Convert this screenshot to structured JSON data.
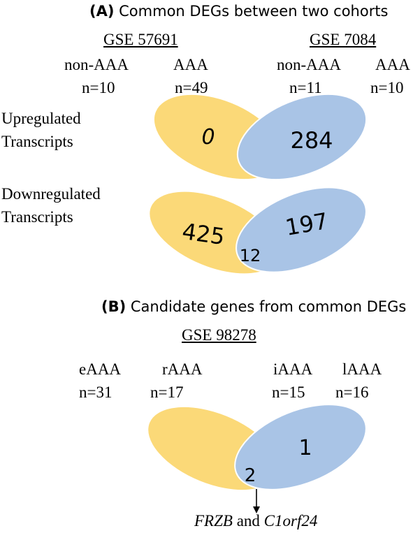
{
  "panel_a": {
    "letter": "(A)",
    "title": "Common DEGs between two cohorts",
    "cohort1": {
      "name": "GSE 57691",
      "groups": [
        {
          "label": "non-AAA",
          "n": "n=10"
        },
        {
          "label": "AAA",
          "n": "n=49"
        }
      ]
    },
    "cohort2": {
      "name": "GSE 7084",
      "groups": [
        {
          "label": "non-AAA",
          "n": "n=11"
        },
        {
          "label": "AAA",
          "n": "n=10"
        }
      ]
    },
    "upregulated": {
      "label_line1": "Upregulated",
      "label_line2": "Transcripts",
      "left": "0",
      "right": "284"
    },
    "downregulated": {
      "label_line1": "Downregulated",
      "label_line2": "Transcripts",
      "left": "425",
      "overlap": "12",
      "right": "197"
    }
  },
  "panel_b": {
    "letter": "(B)",
    "title": "Candidate genes from common DEGs",
    "cohort": {
      "name": "GSE 98278",
      "groups": [
        {
          "label": "eAAA",
          "n": "n=31"
        },
        {
          "label": "rAAA",
          "n": "n=17"
        },
        {
          "label": "iAAA",
          "n": "n=15"
        },
        {
          "label": "lAAA",
          "n": "n=16"
        }
      ]
    },
    "venn": {
      "overlap": "2",
      "right": "1"
    },
    "genes": {
      "gene1": "FRZB",
      "conj": "and",
      "gene2": "C1orf24"
    }
  },
  "colors": {
    "yellow": "#FBD978",
    "blue": "#A9C4E6",
    "outline": "#ffffff"
  }
}
